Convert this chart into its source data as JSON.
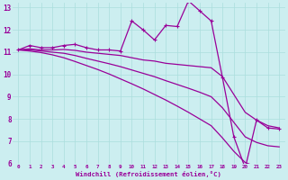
{
  "xlabel": "Windchill (Refroidissement éolien,°C)",
  "bg_color": "#cceef0",
  "grid_color": "#aadddd",
  "line_color": "#990099",
  "xlim": [
    -0.5,
    23.5
  ],
  "ylim": [
    6,
    13.2
  ],
  "yticks": [
    6,
    7,
    8,
    9,
    10,
    11,
    12,
    13
  ],
  "xticks": [
    0,
    1,
    2,
    3,
    4,
    5,
    6,
    7,
    8,
    9,
    10,
    11,
    12,
    13,
    14,
    15,
    16,
    17,
    18,
    19,
    20,
    21,
    22,
    23
  ],
  "series1_x": [
    0,
    1,
    2,
    3,
    4,
    5,
    6,
    7,
    8,
    9,
    10,
    11,
    12,
    13,
    14,
    15,
    16,
    17,
    18,
    19,
    20,
    21,
    22,
    23
  ],
  "series1_y": [
    11.1,
    11.3,
    11.2,
    11.2,
    11.3,
    11.35,
    11.2,
    11.1,
    11.1,
    11.05,
    12.4,
    12.0,
    11.55,
    12.2,
    12.15,
    13.3,
    12.85,
    12.4,
    9.85,
    7.2,
    5.8,
    7.95,
    7.6,
    7.55
  ],
  "series2_x": [
    0,
    1,
    2,
    3,
    4,
    5,
    6,
    7,
    8,
    9,
    10,
    11,
    12,
    13,
    14,
    15,
    16,
    17,
    18,
    19,
    20,
    21,
    22,
    23
  ],
  "series2_y": [
    11.1,
    11.15,
    11.1,
    11.1,
    11.12,
    11.08,
    11.0,
    10.95,
    10.9,
    10.85,
    10.75,
    10.65,
    10.6,
    10.5,
    10.45,
    10.4,
    10.35,
    10.3,
    9.9,
    9.1,
    8.3,
    7.95,
    7.7,
    7.6
  ],
  "series3_x": [
    0,
    1,
    2,
    3,
    4,
    5,
    6,
    7,
    8,
    9,
    10,
    11,
    12,
    13,
    14,
    15,
    16,
    17,
    18,
    19,
    20,
    21,
    22,
    23
  ],
  "series3_y": [
    11.1,
    11.1,
    11.05,
    11.0,
    10.95,
    10.85,
    10.72,
    10.6,
    10.48,
    10.35,
    10.2,
    10.05,
    9.9,
    9.72,
    9.55,
    9.38,
    9.2,
    9.0,
    8.5,
    7.85,
    7.2,
    6.95,
    6.8,
    6.75
  ],
  "series4_x": [
    0,
    1,
    2,
    3,
    4,
    5,
    6,
    7,
    8,
    9,
    10,
    11,
    12,
    13,
    14,
    15,
    16,
    17,
    18,
    19,
    20,
    21,
    22,
    23
  ],
  "series4_y": [
    11.1,
    11.05,
    10.98,
    10.88,
    10.75,
    10.58,
    10.4,
    10.22,
    10.02,
    9.8,
    9.58,
    9.35,
    9.1,
    8.85,
    8.58,
    8.3,
    8.0,
    7.7,
    7.15,
    6.55,
    6.05,
    5.85,
    5.75,
    5.75
  ]
}
